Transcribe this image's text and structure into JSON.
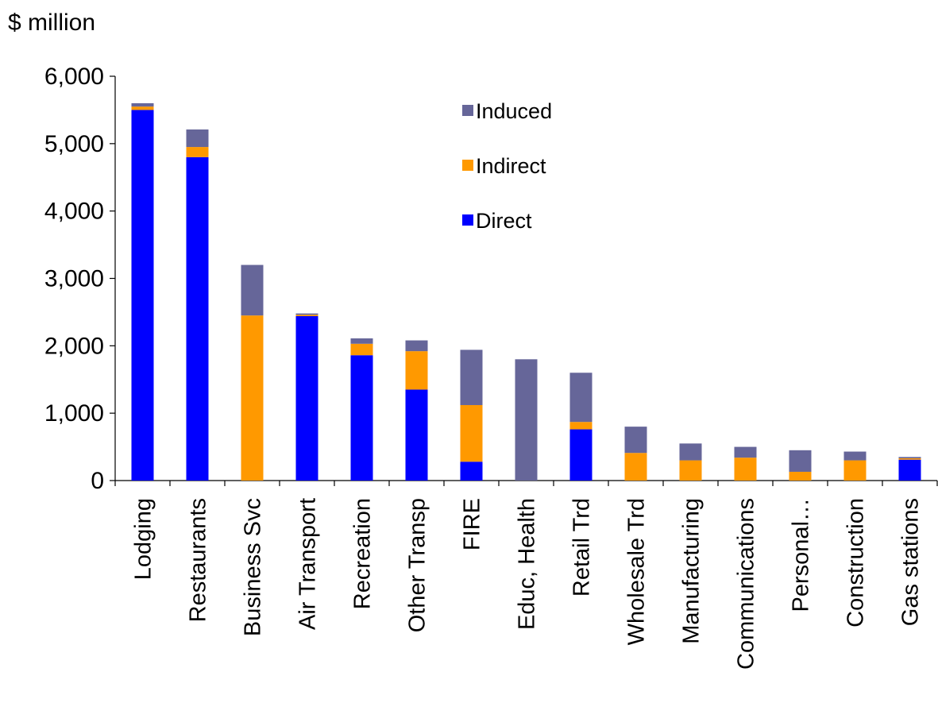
{
  "chart_data": {
    "type": "bar",
    "stacked": true,
    "unit_label": "$ million",
    "title": "",
    "xlabel": "",
    "ylabel": "",
    "ylim": [
      0,
      6000
    ],
    "yticks": [
      "0",
      "1,000",
      "2,000",
      "3,000",
      "4,000",
      "5,000",
      "6,000"
    ],
    "ytick_values": [
      0,
      1000,
      2000,
      3000,
      4000,
      5000,
      6000
    ],
    "grid": false,
    "legend_position": "top-right",
    "categories": [
      "Lodging",
      "Restaurants",
      "Business Svc",
      "Air Transport",
      "Recreation",
      "Other Transp",
      "FIRE",
      "Educ, Health",
      "Retail Trd",
      "Wholesale Trd",
      "Manufacturing",
      "Communications",
      "Personal…",
      "Construction",
      "Gas stations"
    ],
    "series": [
      {
        "name": "Direct",
        "color": "#0000ff",
        "values": [
          5500,
          4800,
          0,
          2440,
          1860,
          1350,
          280,
          0,
          760,
          0,
          0,
          0,
          0,
          0,
          310
        ]
      },
      {
        "name": "Indirect",
        "color": "#ff9900",
        "values": [
          50,
          150,
          2450,
          20,
          170,
          570,
          840,
          0,
          110,
          410,
          300,
          340,
          130,
          300,
          20
        ]
      },
      {
        "name": "Induced",
        "color": "#666699",
        "values": [
          50,
          260,
          750,
          20,
          80,
          160,
          820,
          1800,
          730,
          390,
          250,
          160,
          320,
          130,
          20
        ]
      }
    ],
    "legend_order": [
      "Induced",
      "Indirect",
      "Direct"
    ]
  }
}
